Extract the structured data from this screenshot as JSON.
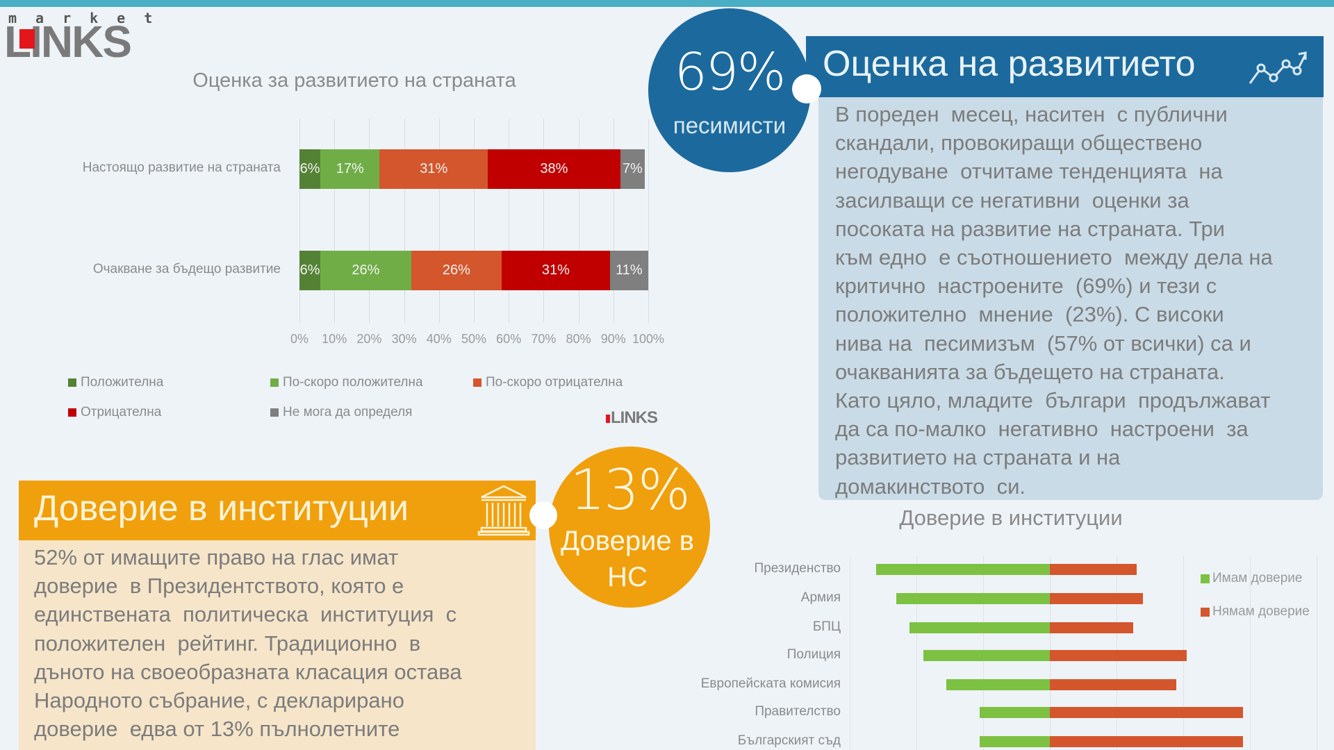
{
  "logo": {
    "top": "market",
    "main": "LINKS",
    "accent": "#e3161b"
  },
  "development": {
    "chart_title": "Оценка за развитието на страната",
    "circle": {
      "value": "69%",
      "label": "песимисти"
    },
    "header": "Оценка на развитието",
    "header_icon": "trend-chart-icon",
    "paragraph": "В пореден месец, наситен с публични скандали, провокиращи обществено негодуване отчитаме тенденцията на засилващи се негативни оценки за посоката на развитие на страната. Три към едно е съотношението между дела на критично настроените (69%) и тези с положително мнение (23%). С високи нива на песимизъм (57% от всички) са и очакванията за бъдещето на страната. Като цяло, младите българи продължават да са по-малко негативно настроени за развитието на страната и на домакинството си.",
    "paragraph_lines": [
      "В пореден  месец, наситен  с публични",
      "скандали, провокиращи обществено",
      "негодуване  отчитаме тенденцията  на",
      "засилващи се негативни  оценки за",
      "посоката на развитие на страната. Три",
      "към едно  е съотношението  между дела на",
      "критично  настроените  (69%) и тези с",
      "положително  мнение  (23%). С високи",
      "нива на  песимизъм  (57% от всички) са и",
      "очакванията за бъдещето на страната.",
      "Като цяло, младите  българи  продължават",
      "да са по-малко  негативно  настроени  за",
      "развитието на страната и на",
      "домакинството  си."
    ],
    "mini_logo": "LINKS"
  },
  "institutions": {
    "header": "Доверие в институции",
    "header_icon": "institution-columns-icon",
    "circle": {
      "value": "13%",
      "label_line1": "Доверие в",
      "label_line2": "НС"
    },
    "paragraph_lines": [
      "52% от имащите право на глас имат",
      "доверие  в Президентството, която е",
      "единствената  политическа  институция  с",
      "положителен  рейтинг. Традиционно  в",
      "дъното на своеобразната класация остава",
      "Народното събрание, с декларирано",
      "доверие  едва от 13% пълнолетните"
    ],
    "chart_title": "Доверие в институции"
  },
  "colors": {
    "blue": "#1c6a9d",
    "blue_panel": "#c9dbe7",
    "orange": "#f0a00c",
    "orange_panel": "#f6e5c9",
    "positive": "#548235",
    "rather_positive": "#70ad47",
    "rather_negative": "#d4562c",
    "negative": "#c00000",
    "undecided": "#7f7f7f",
    "trust": "#7dc142",
    "no_trust": "#d4562c"
  },
  "chart_data": [
    {
      "type": "bar",
      "orientation": "horizontal",
      "stacked": "percent",
      "title": "Оценка за развитието на страната",
      "categories": [
        "Настоящо развитие на страната",
        "Очакване за бъдещо развитие"
      ],
      "series": [
        {
          "name": "Положителна",
          "color": "#548235",
          "values": [
            6,
            6
          ]
        },
        {
          "name": "По-скоро положителна",
          "color": "#70ad47",
          "values": [
            17,
            26
          ]
        },
        {
          "name": "По-скоро отрицателна",
          "color": "#d4562c",
          "values": [
            31,
            26
          ]
        },
        {
          "name": "Отрицателна",
          "color": "#c00000",
          "values": [
            38,
            31
          ]
        },
        {
          "name": "Не мога да определя",
          "color": "#7f7f7f",
          "values": [
            7,
            11
          ]
        }
      ],
      "data_labels": [
        [
          "6%",
          "17%",
          "31%",
          "38%",
          "7%"
        ],
        [
          "6%",
          "26%",
          "26%",
          "31%",
          "11%"
        ]
      ],
      "xlabel": "",
      "ylabel": "",
      "xticks": [
        "0%",
        "10%",
        "20%",
        "30%",
        "40%",
        "50%",
        "60%",
        "70%",
        "80%",
        "90%",
        "100%"
      ],
      "xlim": [
        0,
        100
      ],
      "grid": true,
      "legend_position": "bottom"
    },
    {
      "type": "bar",
      "orientation": "horizontal",
      "diverging": true,
      "title": "Доверие в институции",
      "categories": [
        "Президенство",
        "Армия",
        "БПЦ",
        "Полиция",
        "Европейската комисия",
        "Правителство",
        "Българският съд"
      ],
      "series": [
        {
          "name": "Имам доверие",
          "color": "#7dc142",
          "values": [
            52,
            46,
            42,
            38,
            31,
            21,
            21
          ]
        },
        {
          "name": "Нямам доверие",
          "color": "#d4562c",
          "values": [
            26,
            28,
            25,
            41,
            38,
            58,
            58
          ]
        }
      ],
      "xlim": [
        -80,
        80
      ],
      "grid": true,
      "gridline_step": 20,
      "legend_position": "right"
    }
  ]
}
